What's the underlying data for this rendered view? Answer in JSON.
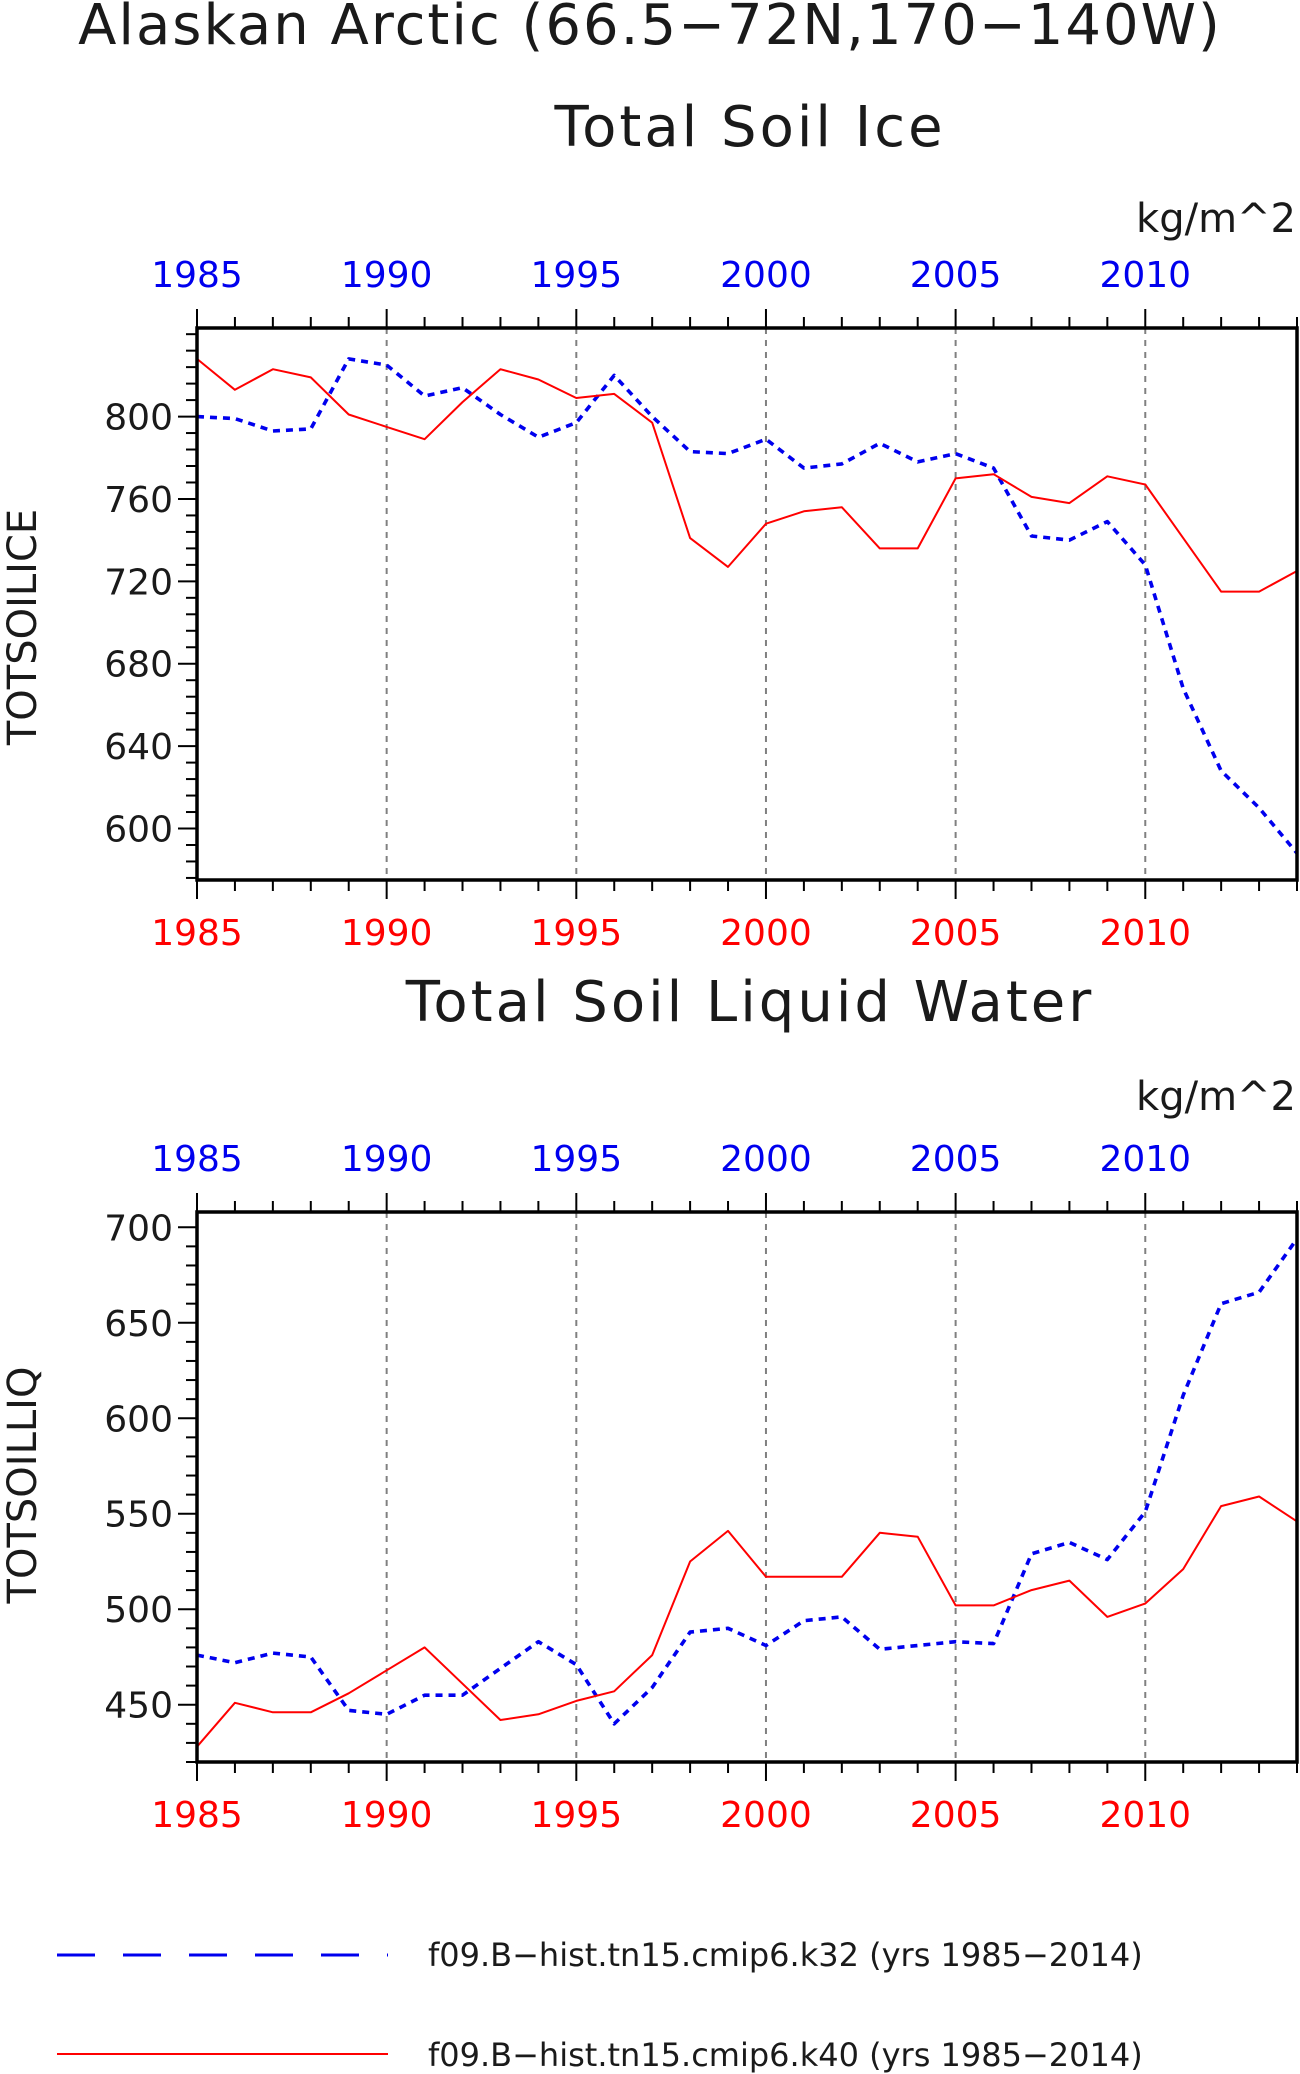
{
  "title": {
    "line1": "Alaskan Arctic (66.5−72N,170−140W)"
  },
  "colors": {
    "k32": "#0000ee",
    "k40": "#ff0000",
    "axis": "#000000"
  },
  "legend": {
    "entries": [
      "f09.B−hist.tn15.cmip6.k32 (yrs 1985−2014)",
      "f09.B−hist.tn15.cmip6.k40 (yrs 1985−2014)"
    ]
  },
  "chart_data": [
    {
      "type": "line",
      "title": "Total Soil Ice",
      "units": "kg/m^2",
      "ylabel": "TOTSOILICE",
      "xlabel": "",
      "x": [
        1985,
        1986,
        1987,
        1988,
        1989,
        1990,
        1991,
        1992,
        1993,
        1994,
        1995,
        1996,
        1997,
        1998,
        1999,
        2000,
        2001,
        2002,
        2003,
        2004,
        2005,
        2006,
        2007,
        2008,
        2009,
        2010,
        2011,
        2012,
        2013,
        2014
      ],
      "xlim": [
        1985,
        2014
      ],
      "ylim": [
        575,
        843
      ],
      "xticks": [
        1985,
        1990,
        1995,
        2000,
        2005,
        2010
      ],
      "yticks": [
        600,
        640,
        680,
        720,
        760,
        800
      ],
      "grid": "dashed vertical at x-ticks",
      "series": [
        {
          "name": "f09.B−hist.tn15.cmip6.k32",
          "style": "dashed",
          "color": "#0000ee",
          "values": [
            800,
            799,
            793,
            794,
            828,
            825,
            810,
            814,
            801,
            790,
            797,
            820,
            800,
            783,
            782,
            789,
            775,
            777,
            787,
            778,
            782,
            775,
            742,
            740,
            749,
            728,
            668,
            628,
            610,
            588
          ]
        },
        {
          "name": "f09.B−hist.tn15.cmip6.k40",
          "style": "solid",
          "color": "#ff0000",
          "values": [
            828,
            813,
            823,
            819,
            801,
            795,
            789,
            807,
            823,
            818,
            809,
            811,
            797,
            741,
            727,
            748,
            754,
            756,
            736,
            736,
            770,
            772,
            761,
            758,
            771,
            767,
            741,
            715,
            715,
            725
          ]
        }
      ]
    },
    {
      "type": "line",
      "title": "Total Soil Liquid Water",
      "units": "kg/m^2",
      "ylabel": "TOTSOILLIQ",
      "xlabel": "",
      "x": [
        1985,
        1986,
        1987,
        1988,
        1989,
        1990,
        1991,
        1992,
        1993,
        1994,
        1995,
        1996,
        1997,
        1998,
        1999,
        2000,
        2001,
        2002,
        2003,
        2004,
        2005,
        2006,
        2007,
        2008,
        2009,
        2010,
        2011,
        2012,
        2013,
        2014
      ],
      "xlim": [
        1985,
        2014
      ],
      "ylim": [
        420,
        708
      ],
      "xticks": [
        1985,
        1990,
        1995,
        2000,
        2005,
        2010
      ],
      "yticks": [
        450,
        500,
        550,
        600,
        650,
        700
      ],
      "grid": "dashed vertical at x-ticks",
      "series": [
        {
          "name": "f09.B−hist.tn15.cmip6.k32",
          "style": "dashed",
          "color": "#0000ee",
          "values": [
            476,
            472,
            477,
            475,
            447,
            445,
            455,
            455,
            469,
            483,
            471,
            440,
            459,
            488,
            490,
            481,
            494,
            496,
            479,
            481,
            483,
            482,
            529,
            535,
            526,
            551,
            612,
            660,
            666,
            694
          ]
        },
        {
          "name": "f09.B−hist.tn15.cmip6.k40",
          "style": "solid",
          "color": "#ff0000",
          "values": [
            428,
            451,
            446,
            446,
            456,
            468,
            480,
            461,
            442,
            445,
            452,
            457,
            476,
            525,
            541,
            517,
            517,
            517,
            540,
            538,
            502,
            502,
            510,
            515,
            496,
            503,
            521,
            554,
            559,
            546
          ]
        }
      ]
    }
  ]
}
